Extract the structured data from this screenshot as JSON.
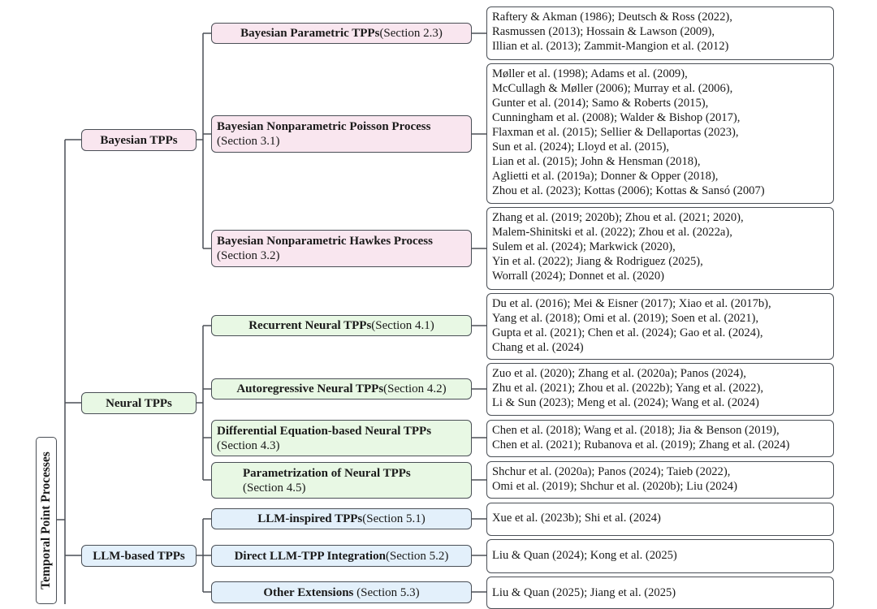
{
  "root": "Temporal Point Processes",
  "categories": [
    {
      "label": "Bayesian TPPs",
      "color": "pink"
    },
    {
      "label": "Neural TPPs",
      "color": "green"
    },
    {
      "label": "LLM-based TPPs",
      "color": "blue"
    }
  ],
  "methods": [
    {
      "title": "Bayesian Parametric TPPs",
      "section": "(Section 2.3)"
    },
    {
      "title": "Bayesian Nonparametric Poisson Process",
      "section": "(Section 3.1)"
    },
    {
      "title": "Bayesian Nonparametric Hawkes Process",
      "section": "(Section 3.2)"
    },
    {
      "title": "Recurrent Neural TPPs",
      "section": "(Section 4.1)"
    },
    {
      "title": "Autoregressive Neural TPPs",
      "section": "(Section 4.2)"
    },
    {
      "title": "Differential Equation-based Neural TPPs",
      "section": "(Section 4.3)"
    },
    {
      "title": "Parametrization of Neural TPPs",
      "section": "(Section 4.5)"
    },
    {
      "title": "LLM-inspired TPPs",
      "section": "(Section 5.1)"
    },
    {
      "title": "Direct LLM-TPP Integration",
      "section": "(Section 5.2)"
    },
    {
      "title": "Other Extensions",
      "section": " (Section 5.3)"
    }
  ],
  "references": [
    [
      "Raftery & Akman (1986); Deutsch & Ross (2022),",
      "Rasmussen (2013); Hossain & Lawson (2009),",
      "Illian et al. (2013); Zammit-Mangion et al. (2012)"
    ],
    [
      "Møller et al. (1998); Adams et al. (2009),",
      "McCullagh & Møller (2006); Murray et al. (2006),",
      "Gunter et al. (2014); Samo & Roberts (2015),",
      "Cunningham et al. (2008); Walder & Bishop (2017),",
      "Flaxman et al. (2015); Sellier & Dellaportas (2023),",
      "Sun et al. (2024); Lloyd et al. (2015),",
      "Lian et al. (2015); John & Hensman (2018),",
      "Aglietti et al. (2019a); Donner & Opper (2018),",
      "Zhou et al. (2023); Kottas (2006); Kottas & Sansó (2007)"
    ],
    [
      "Zhang et al. (2019; 2020b); Zhou et al. (2021; 2020),",
      "Malem-Shinitski et al. (2022); Zhou et al. (2022a),",
      "Sulem et al. (2024); Markwick (2020),",
      "Yin et al. (2022); Jiang & Rodriguez (2025),",
      "Worrall (2024); Donnet et al. (2020)"
    ],
    [
      "Du et al. (2016); Mei & Eisner (2017); Xiao et al. (2017b),",
      "Yang et al. (2018); Omi et al. (2019); Soen et al. (2021),",
      "Gupta et al. (2021); Chen et al. (2024); Gao et al. (2024),",
      "Chang et al. (2024)"
    ],
    [
      "Zuo et al. (2020); Zhang et al. (2020a); Panos (2024),",
      "Zhu et al. (2021); Zhou et al. (2022b); Yang et al. (2022),",
      "Li & Sun (2023); Meng et al. (2024); Wang et al. (2024)"
    ],
    [
      "Chen et al. (2018); Wang et al. (2018); Jia & Benson (2019),",
      "Chen et al. (2021); Rubanova et al. (2019); Zhang et al. (2024)"
    ],
    [
      "Shchur et al. (2020a); Panos (2024); Taieb (2022),",
      "Omi et al. (2019); Shchur et al. (2020b); Liu (2024)"
    ],
    [
      "Xue et al. (2023b); Shi et al. (2024)"
    ],
    [
      "Liu & Quan (2024); Kong et al. (2025)"
    ],
    [
      "Liu & Quan (2025); Jiang et al. (2025)"
    ]
  ]
}
